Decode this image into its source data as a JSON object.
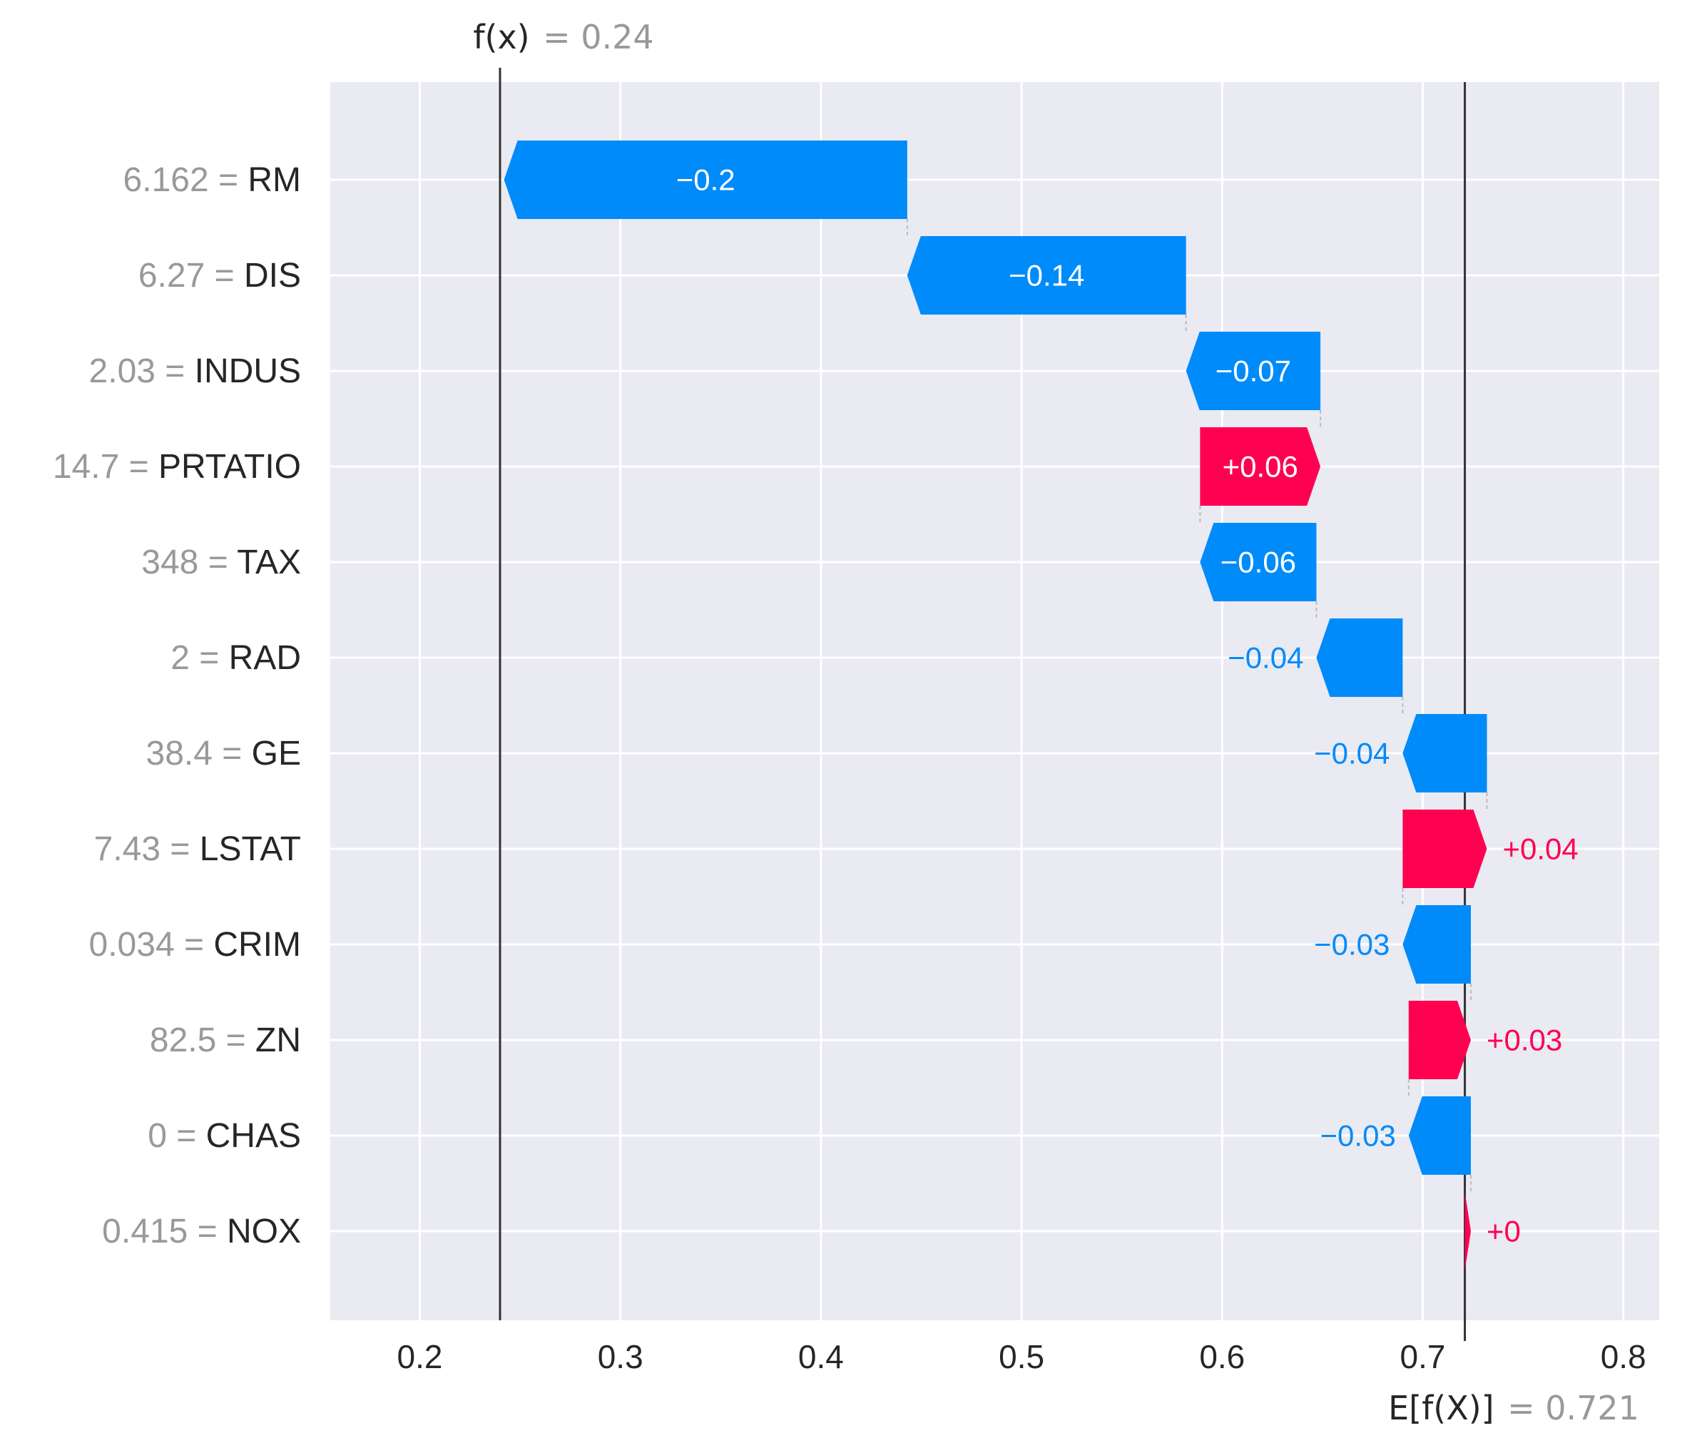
{
  "chart_data": {
    "type": "bar",
    "subtype": "waterfall",
    "xlim": [
      0.155,
      0.817
    ],
    "xticks": [
      0.2,
      0.3,
      0.4,
      0.5,
      0.6,
      0.7,
      0.8
    ],
    "xtick_labels": [
      "0.2",
      "0.3",
      "0.4",
      "0.5",
      "0.6",
      "0.7",
      "0.8"
    ],
    "grid": true,
    "base_value": 0.721,
    "output_value": 0.24,
    "base_label": {
      "math": "E[f(X)]",
      "value": "= 0.721"
    },
    "output_label": {
      "math": "f(x)",
      "value": "= 0.24"
    },
    "colors": {
      "positive": "#ff0051",
      "negative": "#008bfb",
      "background": "#eaeaf2",
      "grid": "#ffffff",
      "feature_value": "#999999",
      "text": "#262626",
      "connector": "#bbbbbb"
    },
    "features": [
      {
        "value_text": "6.162",
        "name": "RM",
        "start": 0.443,
        "end": 0.242,
        "label": "−0.2",
        "label_inside": true
      },
      {
        "value_text": "6.27",
        "name": "DIS",
        "start": 0.582,
        "end": 0.443,
        "label": "−0.14",
        "label_inside": true
      },
      {
        "value_text": "2.03",
        "name": "INDUS",
        "start": 0.649,
        "end": 0.582,
        "label": "−0.07",
        "label_inside": true
      },
      {
        "value_text": "14.7",
        "name": "PRTATIO",
        "start": 0.589,
        "end": 0.649,
        "label": "+0.06",
        "label_inside": true
      },
      {
        "value_text": "348",
        "name": "TAX",
        "start": 0.647,
        "end": 0.589,
        "label": "−0.06",
        "label_inside": true
      },
      {
        "value_text": "2",
        "name": "RAD",
        "start": 0.69,
        "end": 0.647,
        "label": "−0.04",
        "label_inside": false
      },
      {
        "value_text": "38.4",
        "name": "GE",
        "start": 0.732,
        "end": 0.69,
        "label": "−0.04",
        "label_inside": false
      },
      {
        "value_text": "7.43",
        "name": "LSTAT",
        "start": 0.69,
        "end": 0.732,
        "label": "+0.04",
        "label_inside": false
      },
      {
        "value_text": "0.034",
        "name": "CRIM",
        "start": 0.724,
        "end": 0.69,
        "label": "−0.03",
        "label_inside": false
      },
      {
        "value_text": "82.5",
        "name": "ZN",
        "start": 0.693,
        "end": 0.724,
        "label": "+0.03",
        "label_inside": false
      },
      {
        "value_text": "0",
        "name": "CHAS",
        "start": 0.724,
        "end": 0.693,
        "label": "−0.03",
        "label_inside": false
      },
      {
        "value_text": "0.415",
        "name": "NOX",
        "start": 0.721,
        "end": 0.724,
        "label": "+0",
        "label_inside": false
      }
    ]
  }
}
